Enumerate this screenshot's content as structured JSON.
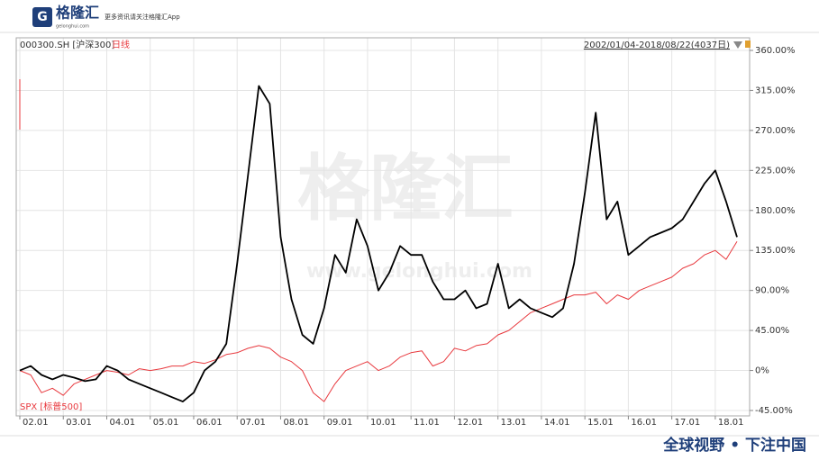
{
  "header": {
    "logo": "格隆汇",
    "site": "gelonghui.com",
    "slogan": "更多资讯请关注格隆汇App"
  },
  "watermark": {
    "brand": "格隆汇",
    "url": "www.gelonghui.com"
  },
  "footer": {
    "tagline": "全球视野 • 下注中国"
  },
  "chart_data": {
    "type": "line",
    "period": "日线",
    "date_range": "2002/01/04-2018/08/22(4037日)",
    "categories": [
      "02.01",
      null,
      null,
      null,
      "03.01",
      null,
      null,
      null,
      "04.01",
      null,
      null,
      null,
      "05.01",
      null,
      null,
      null,
      "06.01",
      null,
      null,
      null,
      "07.01",
      null,
      null,
      null,
      "08.01",
      null,
      null,
      null,
      "09.01",
      null,
      null,
      null,
      "10.01",
      null,
      null,
      null,
      "11.01",
      null,
      null,
      null,
      "12.01",
      null,
      null,
      null,
      "13.01",
      null,
      null,
      null,
      "14.01",
      null,
      null,
      null,
      "15.01",
      null,
      null,
      null,
      "16.01",
      null,
      null,
      null,
      "17.01",
      null,
      null,
      null,
      "18.01",
      null,
      null
    ],
    "series": [
      {
        "name": "000300.SH [沪深300]",
        "color": "#000000",
        "values": [
          0,
          5,
          -5,
          -10,
          -5,
          -8,
          -12,
          -10,
          5,
          0,
          -10,
          -15,
          -20,
          -25,
          -30,
          -35,
          -25,
          0,
          10,
          30,
          120,
          220,
          320,
          300,
          150,
          80,
          40,
          30,
          70,
          130,
          110,
          170,
          140,
          90,
          110,
          140,
          130,
          130,
          100,
          80,
          80,
          90,
          70,
          75,
          120,
          70,
          80,
          70,
          65,
          60,
          70,
          120,
          200,
          290,
          170,
          190,
          130,
          140,
          150,
          155,
          160,
          170,
          190,
          210,
          225,
          190,
          150
        ]
      },
      {
        "name": "SPX [标普500]",
        "color": "#e8383d",
        "values": [
          0,
          -5,
          -25,
          -20,
          -28,
          -15,
          -10,
          -5,
          0,
          -2,
          -5,
          2,
          0,
          2,
          5,
          5,
          10,
          8,
          12,
          18,
          20,
          25,
          28,
          25,
          15,
          10,
          0,
          -25,
          -35,
          -15,
          0,
          5,
          10,
          0,
          5,
          15,
          20,
          22,
          5,
          10,
          25,
          22,
          28,
          30,
          40,
          45,
          55,
          65,
          70,
          75,
          80,
          85,
          85,
          88,
          75,
          85,
          80,
          90,
          95,
          100,
          105,
          115,
          120,
          130,
          135,
          125,
          145
        ]
      }
    ],
    "ylim": [
      -45,
      360
    ],
    "yticks": [
      {
        "value": -45,
        "label": "-45.00%"
      },
      {
        "value": 0,
        "label": "0%"
      },
      {
        "value": 45,
        "label": "45.00%"
      },
      {
        "value": 90,
        "label": "90.00%"
      },
      {
        "value": 135,
        "label": "135.00%"
      },
      {
        "value": 180,
        "label": "180.00%"
      },
      {
        "value": 225,
        "label": "225.00%"
      },
      {
        "value": 270,
        "label": "270.00%"
      },
      {
        "value": 315,
        "label": "315.00%"
      },
      {
        "value": 360,
        "label": "360.00%"
      }
    ],
    "grid": true
  }
}
